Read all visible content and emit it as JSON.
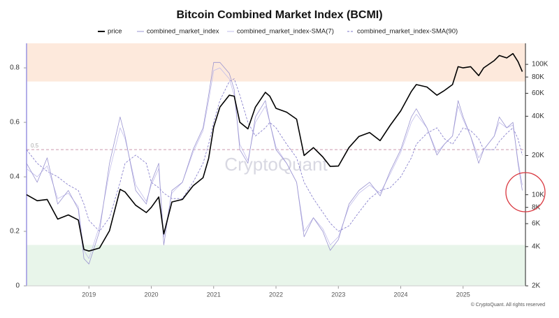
{
  "chart_data": {
    "type": "line",
    "title": "Bitcoin Combined Market Index (BCMI)",
    "watermark": "CryptoQuant",
    "footer": "© CryptoQuant. All rights reserved",
    "x": [
      2018.0,
      2018.17,
      2018.33,
      2018.5,
      2018.67,
      2018.83,
      2018.92,
      2019.0,
      2019.17,
      2019.33,
      2019.5,
      2019.58,
      2019.75,
      2019.92,
      2020.0,
      2020.12,
      2020.2,
      2020.33,
      2020.5,
      2020.67,
      2020.83,
      2020.92,
      2021.0,
      2021.1,
      2021.25,
      2021.33,
      2021.42,
      2021.55,
      2021.67,
      2021.83,
      2021.9,
      2022.0,
      2022.17,
      2022.33,
      2022.45,
      2022.6,
      2022.75,
      2022.87,
      2023.0,
      2023.17,
      2023.33,
      2023.5,
      2023.67,
      2023.83,
      2024.0,
      2024.17,
      2024.25,
      2024.42,
      2024.58,
      2024.7,
      2024.83,
      2024.92,
      2025.0,
      2025.12,
      2025.25,
      2025.33,
      2025.5,
      2025.58,
      2025.7,
      2025.8,
      2025.88,
      2025.95
    ],
    "series": [
      {
        "name": "price",
        "color": "#000000",
        "axis": "y2",
        "width": 1.6,
        "values": [
          10000,
          9000,
          9200,
          6500,
          7000,
          6400,
          3800,
          3700,
          3900,
          5300,
          11000,
          10500,
          8300,
          7300,
          8000,
          9600,
          5000,
          8800,
          9200,
          11700,
          13500,
          19000,
          33000,
          47000,
          58000,
          57000,
          36000,
          32000,
          47000,
          61000,
          57000,
          46000,
          43000,
          38000,
          20000,
          23000,
          19500,
          16500,
          16600,
          23000,
          28000,
          30000,
          26000,
          34000,
          44000,
          62000,
          70000,
          67000,
          58000,
          63000,
          70000,
          96000,
          94000,
          96000,
          82000,
          94000,
          107000,
          117000,
          112000,
          121000,
          105000,
          88000
        ]
      },
      {
        "name": "combined_market_index",
        "color": "#9a94d0",
        "width": 0.8,
        "values": [
          0.45,
          0.38,
          0.47,
          0.3,
          0.35,
          0.28,
          0.1,
          0.08,
          0.2,
          0.45,
          0.62,
          0.55,
          0.35,
          0.3,
          0.38,
          0.45,
          0.15,
          0.35,
          0.38,
          0.5,
          0.58,
          0.7,
          0.82,
          0.82,
          0.78,
          0.72,
          0.5,
          0.45,
          0.62,
          0.68,
          0.6,
          0.5,
          0.45,
          0.38,
          0.18,
          0.25,
          0.2,
          0.13,
          0.17,
          0.3,
          0.35,
          0.38,
          0.33,
          0.42,
          0.5,
          0.62,
          0.65,
          0.58,
          0.48,
          0.52,
          0.55,
          0.68,
          0.62,
          0.55,
          0.45,
          0.5,
          0.55,
          0.62,
          0.58,
          0.6,
          0.45,
          0.35
        ]
      },
      {
        "name": "combined_market_index-SMA(7)",
        "color": "#c2bdeb",
        "width": 0.8,
        "values": [
          0.43,
          0.4,
          0.44,
          0.32,
          0.34,
          0.29,
          0.13,
          0.1,
          0.22,
          0.42,
          0.58,
          0.54,
          0.37,
          0.31,
          0.37,
          0.43,
          0.18,
          0.34,
          0.38,
          0.49,
          0.57,
          0.68,
          0.79,
          0.8,
          0.76,
          0.7,
          0.52,
          0.46,
          0.6,
          0.66,
          0.6,
          0.51,
          0.45,
          0.38,
          0.2,
          0.25,
          0.21,
          0.15,
          0.18,
          0.29,
          0.34,
          0.37,
          0.34,
          0.41,
          0.49,
          0.6,
          0.63,
          0.58,
          0.49,
          0.52,
          0.55,
          0.66,
          0.61,
          0.55,
          0.47,
          0.5,
          0.55,
          0.6,
          0.58,
          0.59,
          0.46,
          0.37
        ]
      },
      {
        "name": "combined_market_index-SMA(90)",
        "color": "#7c74c8",
        "width": 0.8,
        "line_style": "dashed",
        "values": [
          0.5,
          0.45,
          0.42,
          0.4,
          0.37,
          0.35,
          0.3,
          0.24,
          0.2,
          0.25,
          0.38,
          0.45,
          0.48,
          0.45,
          0.38,
          0.36,
          0.34,
          0.32,
          0.32,
          0.38,
          0.45,
          0.52,
          0.6,
          0.68,
          0.75,
          0.76,
          0.7,
          0.6,
          0.55,
          0.58,
          0.6,
          0.58,
          0.52,
          0.47,
          0.38,
          0.32,
          0.27,
          0.23,
          0.2,
          0.22,
          0.27,
          0.32,
          0.35,
          0.36,
          0.4,
          0.47,
          0.52,
          0.56,
          0.58,
          0.54,
          0.52,
          0.55,
          0.58,
          0.57,
          0.54,
          0.5,
          0.5,
          0.53,
          0.56,
          0.58,
          0.54,
          0.48
        ]
      }
    ],
    "xlim": [
      2018.0,
      2026.0
    ],
    "xticks": [
      2019,
      2020,
      2021,
      2022,
      2023,
      2024,
      2025
    ],
    "ylim": [
      0,
      0.89
    ],
    "yticks": [
      0,
      0.2,
      0.4,
      0.6,
      0.8
    ],
    "y2lim": [
      2000,
      145000
    ],
    "y2_log": true,
    "y2ticks": [
      {
        "value": 2000,
        "label": "2K"
      },
      {
        "value": 4000,
        "label": "4K"
      },
      {
        "value": 6000,
        "label": "6K"
      },
      {
        "value": 8000,
        "label": "8K"
      },
      {
        "value": 10000,
        "label": "10K"
      },
      {
        "value": 20000,
        "label": "20K"
      },
      {
        "value": 40000,
        "label": "40K"
      },
      {
        "value": 60000,
        "label": "60K"
      },
      {
        "value": 80000,
        "label": "80K"
      },
      {
        "value": 100000,
        "label": "100K"
      }
    ],
    "bands": [
      {
        "from": 0.75,
        "to": 0.89,
        "color": "#fde9dc"
      },
      {
        "from": 0,
        "to": 0.15,
        "color": "#e8f5ea"
      }
    ],
    "reference_line": 0.5,
    "grid": true
  }
}
